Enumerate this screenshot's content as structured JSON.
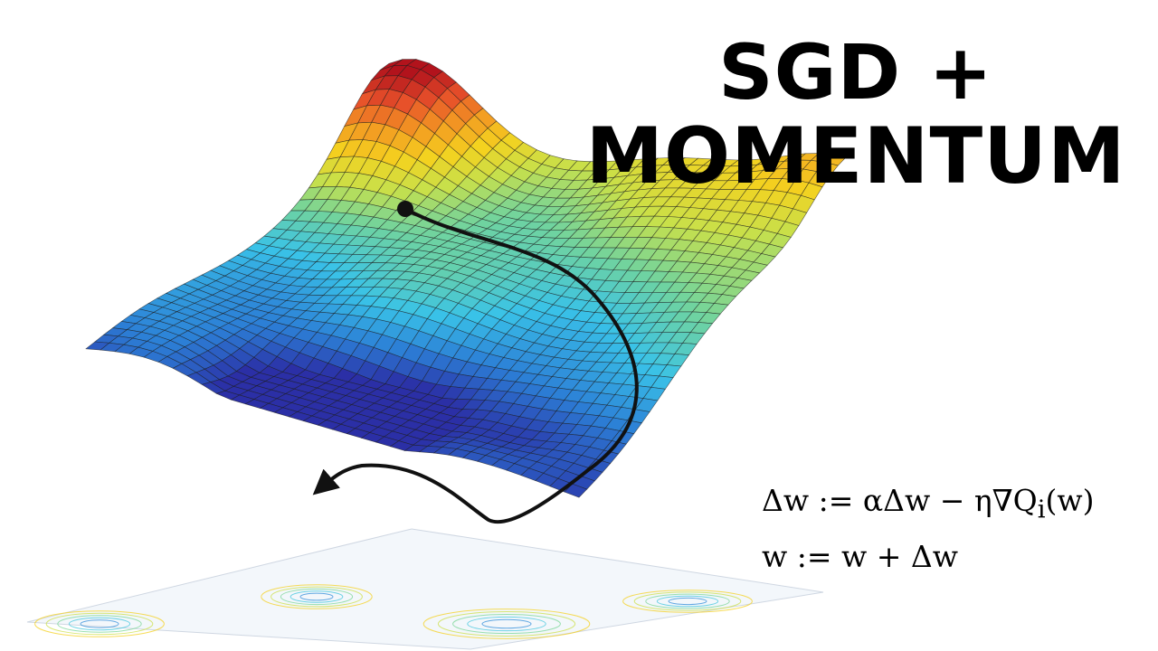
{
  "title": {
    "line1": "SGD +",
    "line2": "MOMENTUM"
  },
  "equations": {
    "update_velocity": {
      "lhs": "Δw",
      "op": ":=",
      "rhs": "αΔw − η∇Q",
      "subscript": "i",
      "tail": "(w)"
    },
    "update_weight": {
      "lhs": "w",
      "op": ":=",
      "rhs": "w + Δw"
    }
  },
  "surface": {
    "colormap": [
      "#2b2fa6",
      "#2c7fd6",
      "#39c2e8",
      "#6fd3a0",
      "#c8e04a",
      "#f4d21f",
      "#f39a22",
      "#e7502a",
      "#b2131c"
    ],
    "mesh_line_color": "#1b1b1b",
    "path_color": "#111111"
  }
}
